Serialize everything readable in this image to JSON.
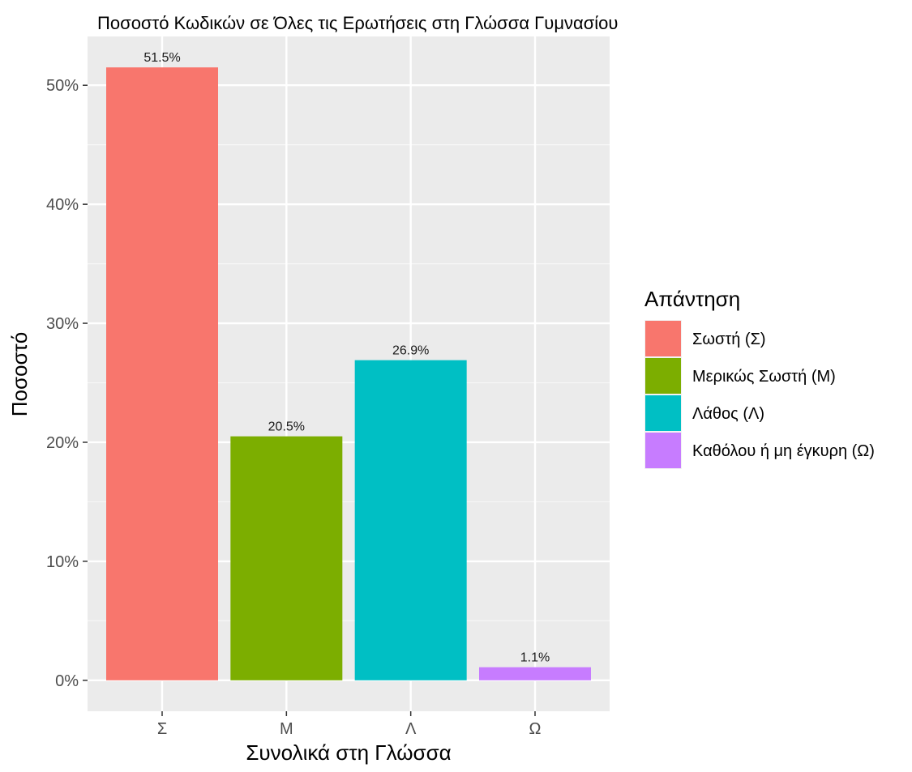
{
  "chart_data": {
    "type": "bar",
    "title": "Ποσοστό Κωδικών σε Όλες τις Ερωτήσεις στη Γλώσσα Γυμνασίου",
    "xlabel": "Συνολικά στη Γλώσσα",
    "ylabel": "Ποσοστό",
    "categories": [
      "Σ",
      "Μ",
      "Λ",
      "Ω"
    ],
    "values": [
      51.5,
      20.5,
      26.9,
      1.1
    ],
    "value_labels": [
      "51.5%",
      "20.5%",
      "26.9%",
      "1.1%"
    ],
    "colors": [
      "#F8766D",
      "#7CAE00",
      "#00BFC4",
      "#C77CFF"
    ],
    "y_ticks": [
      0,
      10,
      20,
      30,
      40,
      50
    ],
    "y_tick_labels": [
      "0%",
      "10%",
      "20%",
      "30%",
      "40%",
      "50%"
    ],
    "ylim": [
      -2.6,
      54.1
    ],
    "grid": true,
    "legend": {
      "title": "Απάντηση",
      "position": "right",
      "entries": [
        {
          "label": "Σωστή (Σ)",
          "color": "#F8766D"
        },
        {
          "label": "Μερικώς Σωστή (Μ)",
          "color": "#7CAE00"
        },
        {
          "label": "Λάθος (Λ)",
          "color": "#00BFC4"
        },
        {
          "label": "Καθόλου ή μη έγκυρη (Ω)",
          "color": "#C77CFF"
        }
      ]
    },
    "panel_background": "#EBEBEB",
    "grid_color": "#FFFFFF"
  }
}
